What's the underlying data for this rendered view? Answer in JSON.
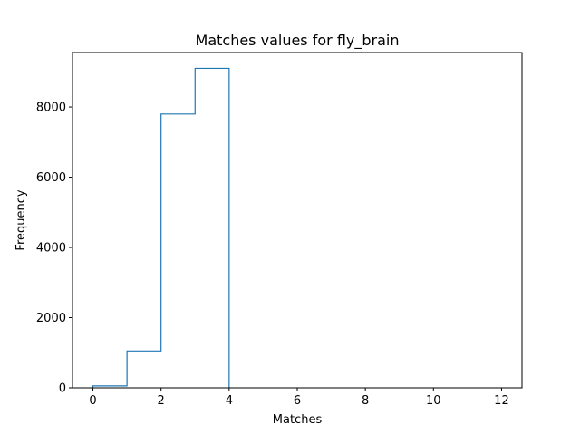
{
  "chart_data": {
    "type": "step-histogram",
    "title": "Matches values for fly_brain",
    "xlabel": "Matches",
    "ylabel": "Frequency",
    "xlim": [
      -0.6,
      12.6
    ],
    "ylim": [
      0,
      9550
    ],
    "xticks": [
      0,
      2,
      4,
      6,
      8,
      10,
      12
    ],
    "yticks": [
      0,
      2000,
      4000,
      6000,
      8000
    ],
    "bin_edges": [
      0,
      1,
      2,
      3,
      4
    ],
    "counts": [
      55,
      1050,
      7800,
      9100
    ],
    "line_color": "#1f77b4",
    "grid": false,
    "legend": "none"
  }
}
